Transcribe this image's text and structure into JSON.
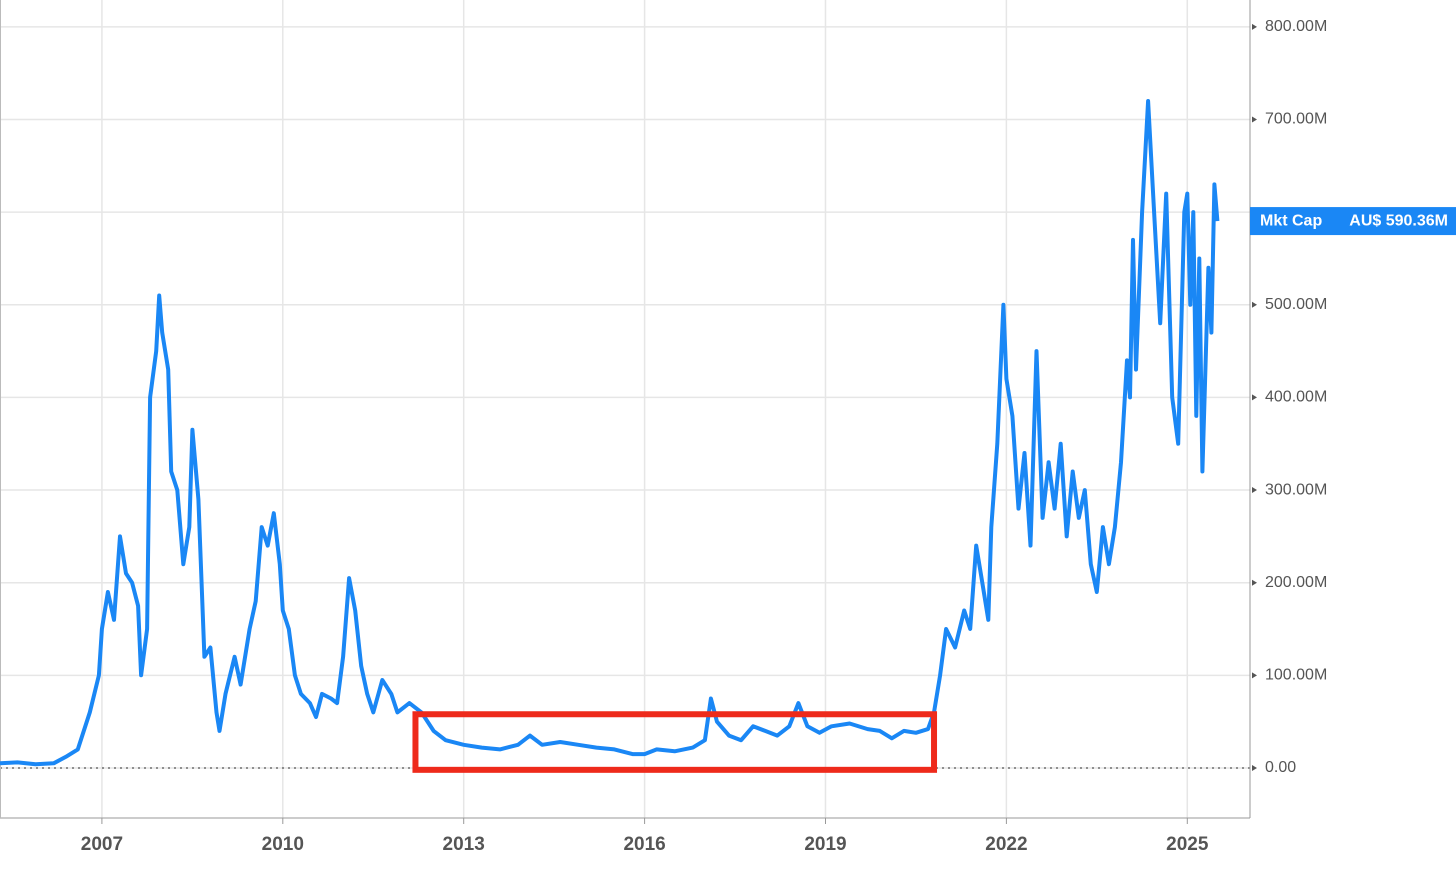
{
  "chart_data": {
    "type": "line",
    "x": [
      2005.31,
      2005.6,
      2005.9,
      2006.2,
      2006.4,
      2006.6,
      2006.8,
      2006.95,
      2007.0,
      2007.1,
      2007.2,
      2007.3,
      2007.4,
      2007.5,
      2007.6,
      2007.65,
      2007.75,
      2007.8,
      2007.9,
      2007.95,
      2008.0,
      2008.1,
      2008.15,
      2008.25,
      2008.35,
      2008.45,
      2008.5,
      2008.6,
      2008.7,
      2008.8,
      2008.9,
      2008.95,
      2009.05,
      2009.2,
      2009.3,
      2009.45,
      2009.55,
      2009.65,
      2009.75,
      2009.85,
      2009.95,
      2010.0,
      2010.1,
      2010.2,
      2010.3,
      2010.45,
      2010.55,
      2010.65,
      2010.8,
      2010.9,
      2011.0,
      2011.1,
      2011.2,
      2011.3,
      2011.4,
      2011.5,
      2011.65,
      2011.8,
      2011.9,
      2012.1,
      2012.3,
      2012.5,
      2012.7,
      2013.0,
      2013.3,
      2013.6,
      2013.9,
      2014.1,
      2014.3,
      2014.6,
      2014.9,
      2015.2,
      2015.5,
      2015.8,
      2016.0,
      2016.2,
      2016.5,
      2016.8,
      2017.0,
      2017.1,
      2017.2,
      2017.4,
      2017.6,
      2017.8,
      2018.0,
      2018.2,
      2018.4,
      2018.55,
      2018.7,
      2018.9,
      2019.1,
      2019.4,
      2019.7,
      2019.9,
      2020.1,
      2020.3,
      2020.5,
      2020.7,
      2020.8,
      2020.9,
      2021.0,
      2021.15,
      2021.3,
      2021.4,
      2021.5,
      2021.6,
      2021.7,
      2021.75,
      2021.85,
      2021.95,
      2022.0,
      2022.1,
      2022.2,
      2022.3,
      2022.4,
      2022.5,
      2022.6,
      2022.7,
      2022.8,
      2022.9,
      2023.0,
      2023.1,
      2023.2,
      2023.3,
      2023.4,
      2023.5,
      2023.6,
      2023.7,
      2023.8,
      2023.9,
      2024.0,
      2024.05,
      2024.1,
      2024.15,
      2024.25,
      2024.35,
      2024.45,
      2024.55,
      2024.65,
      2024.75,
      2024.85,
      2024.95,
      2025.0,
      2025.05,
      2025.1,
      2025.15,
      2025.2,
      2025.25,
      2025.35,
      2025.4,
      2025.45,
      2025.5
    ],
    "series": [
      {
        "name": "Mkt Cap",
        "color": "#1a87f5",
        "values": [
          5,
          6,
          4,
          5,
          12,
          20,
          60,
          100,
          150,
          190,
          160,
          250,
          210,
          200,
          175,
          100,
          150,
          400,
          450,
          510,
          470,
          430,
          320,
          300,
          220,
          260,
          365,
          290,
          120,
          130,
          60,
          40,
          80,
          120,
          90,
          150,
          180,
          260,
          240,
          275,
          220,
          170,
          150,
          100,
          80,
          70,
          55,
          80,
          75,
          70,
          120,
          205,
          170,
          110,
          80,
          60,
          95,
          80,
          60,
          70,
          60,
          40,
          30,
          25,
          22,
          20,
          25,
          35,
          25,
          28,
          25,
          22,
          20,
          15,
          15,
          20,
          18,
          22,
          30,
          75,
          50,
          35,
          30,
          45,
          40,
          35,
          45,
          70,
          45,
          38,
          45,
          48,
          42,
          40,
          32,
          40,
          38,
          42,
          60,
          100,
          150,
          130,
          170,
          150,
          240,
          200,
          160,
          260,
          350,
          500,
          420,
          380,
          280,
          340,
          240,
          450,
          270,
          330,
          280,
          350,
          250,
          320,
          270,
          300,
          220,
          190,
          260,
          220,
          260,
          330,
          440,
          400,
          570,
          430,
          600,
          720,
          600,
          480,
          620,
          400,
          350,
          600,
          620,
          500,
          600,
          380,
          550,
          320,
          540,
          470,
          630,
          590.36
        ]
      }
    ],
    "xlim": [
      2005.31,
      2026.04
    ],
    "xticks": [
      2007,
      2010,
      2013,
      2016,
      2019,
      2022,
      2025
    ],
    "ylim": [
      -54,
      829
    ],
    "yticks": [
      {
        "value": 0,
        "label": "0.00"
      },
      {
        "value": 100,
        "label": "100.00M"
      },
      {
        "value": 200,
        "label": "200.00M"
      },
      {
        "value": 300,
        "label": "300.00M"
      },
      {
        "value": 400,
        "label": "400.00M"
      },
      {
        "value": 500,
        "label": "500.00M"
      },
      {
        "value": 600,
        "label": ""
      },
      {
        "value": 700,
        "label": "700.00M"
      },
      {
        "value": 800,
        "label": "800.00M"
      }
    ],
    "grid": true,
    "last_value": {
      "name": "Mkt Cap",
      "label": "AU$ 590.36M",
      "value": 590.36
    },
    "highlight": {
      "x": [
        2012.2,
        2020.8
      ],
      "y": [
        -2,
        58
      ],
      "color": "#ee2a1b"
    }
  }
}
